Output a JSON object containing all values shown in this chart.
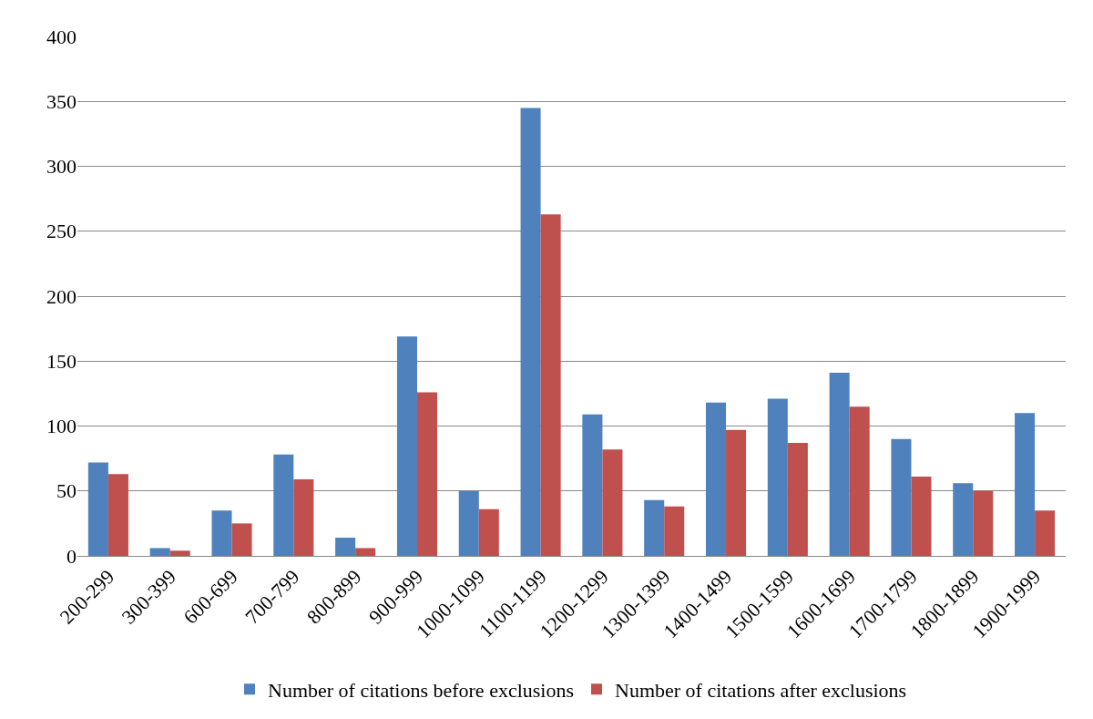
{
  "chart_data": {
    "type": "bar",
    "categories": [
      "200-299",
      "300-399",
      "600-699",
      "700-799",
      "800-899",
      "900-999",
      "1000-1099",
      "1100-1199",
      "1200-1299",
      "1300-1399",
      "1400-1499",
      "1500-1599",
      "1600-1699",
      "1700-1799",
      "1800-1899",
      "1900-1999"
    ],
    "series": [
      {
        "name": "Number of citations before exclusions",
        "color": "#4f81bd",
        "values": [
          72,
          6,
          35,
          78,
          14,
          169,
          50,
          345,
          109,
          43,
          118,
          121,
          141,
          90,
          56,
          110
        ]
      },
      {
        "name": "Number of citations after exclusions",
        "color": "#c0504d",
        "values": [
          63,
          4,
          25,
          59,
          6,
          126,
          36,
          263,
          82,
          38,
          97,
          87,
          115,
          61,
          50,
          35
        ]
      }
    ],
    "ylim": [
      0,
      400
    ],
    "yticks": [
      0,
      50,
      100,
      150,
      200,
      250,
      300,
      350,
      400
    ],
    "grid": "y",
    "legend": "bottom"
  }
}
